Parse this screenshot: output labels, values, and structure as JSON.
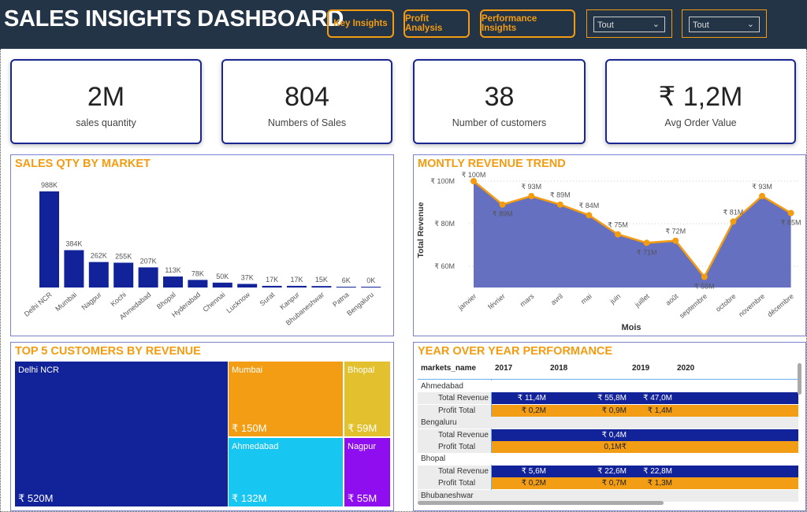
{
  "header": {
    "title": "SALES INSIGHTS DASHBOARD",
    "nav": [
      "Key Insights",
      "Profit Analysis",
      "Performance Insights"
    ],
    "filters": [
      "Tout",
      "Tout"
    ]
  },
  "kpis": [
    {
      "value": "2M",
      "label": "sales quantity"
    },
    {
      "value": "804",
      "label": "Numbers of Sales"
    },
    {
      "value": "38",
      "label": "Number of customers"
    },
    {
      "value": "₹ 1,2M",
      "label": "Avg Order Value"
    }
  ],
  "colors": {
    "header_bg": "#233447",
    "accent": "#f39c12",
    "navy": "#12239a",
    "area": "#6670c0"
  },
  "chart_data": [
    {
      "type": "bar",
      "title": "SALES QTY BY MARKET",
      "categories": [
        "Delhi NCR",
        "Mumbai",
        "Nagpur",
        "Kochi",
        "Ahmedabad",
        "Bhopal",
        "Hyderabad",
        "Chennai",
        "Lucknow",
        "Surat",
        "Kanpur",
        "Bhubaneshwar",
        "Patna",
        "Bengaluru"
      ],
      "values": [
        988,
        384,
        262,
        255,
        207,
        113,
        78,
        50,
        37,
        17,
        17,
        15,
        6,
        0
      ],
      "labels": [
        "988K",
        "384K",
        "262K",
        "255K",
        "207K",
        "113K",
        "78K",
        "50K",
        "37K",
        "17K",
        "17K",
        "15K",
        "6K",
        "0K"
      ],
      "unit": "K"
    },
    {
      "type": "area",
      "title": "MONTLY REVENUE TREND",
      "xlabel": "Mois",
      "ylabel": "Total Revenue",
      "categories": [
        "janvier",
        "février",
        "mars",
        "avril",
        "mai",
        "juin",
        "juillet",
        "août",
        "septembre",
        "octobre",
        "novembre",
        "décembre"
      ],
      "values": [
        100,
        89,
        93,
        89,
        84,
        75,
        71,
        72,
        55,
        81,
        93,
        85
      ],
      "labels": [
        "₹ 100M",
        "₹ 89M",
        "₹ 93M",
        "₹ 89M",
        "₹ 84M",
        "₹ 75M",
        "₹ 71M",
        "₹ 72M",
        "₹ 55M",
        "₹ 81M",
        "₹ 93M",
        "₹ 85M"
      ],
      "yticks": [
        "₹ 100M",
        "₹ 80M",
        "₹ 60M"
      ],
      "ytick_values": [
        100,
        80,
        60
      ],
      "grid": true
    }
  ],
  "treemap": {
    "title": "TOP 5 CUSTOMERS BY REVENUE",
    "items": [
      {
        "name": "Delhi NCR",
        "value": "₹ 520M",
        "color": "#12239a"
      },
      {
        "name": "Mumbai",
        "value": "₹ 150M",
        "color": "#f29d13"
      },
      {
        "name": "Ahmedabad",
        "value": "₹ 132M",
        "color": "#17c6f1"
      },
      {
        "name": "Bhopal",
        "value": "₹ 59M",
        "color": "#e2c02e"
      },
      {
        "name": "Nagpur",
        "value": "₹ 55M",
        "color": "#8f0ef0"
      }
    ]
  },
  "yoy": {
    "title": "YEAR OVER YEAR PERFORMANCE",
    "columns": [
      "markets_name",
      "2017",
      "2018",
      "2019",
      "2020"
    ],
    "groups": [
      {
        "name": "Ahmedabad",
        "rows": [
          {
            "label": "Total Revenue",
            "values": [
              "₹ 11,4M",
              "₹ 55,8M",
              "₹ 47,0M",
              ""
            ]
          },
          {
            "label": "Profit Total",
            "values": [
              "₹ 0,2M",
              "₹ 0,9M",
              "₹ 1,4M",
              ""
            ]
          }
        ]
      },
      {
        "name": "Bengaluru",
        "rows": [
          {
            "label": "Total Revenue",
            "values": [
              "",
              "₹ 0,4M",
              "",
              ""
            ]
          },
          {
            "label": "Profit Total",
            "values": [
              "",
              "0,1M₹",
              "",
              ""
            ]
          }
        ]
      },
      {
        "name": "Bhopal",
        "rows": [
          {
            "label": "Total Revenue",
            "values": [
              "₹ 5,6M",
              "₹ 22,6M",
              "₹ 22,8M",
              ""
            ]
          },
          {
            "label": "Profit Total",
            "values": [
              "₹ 0,2M",
              "₹ 0,7M",
              "₹ 1,3M",
              ""
            ]
          }
        ]
      },
      {
        "name": "Bhubaneshwar",
        "rows": []
      }
    ]
  }
}
